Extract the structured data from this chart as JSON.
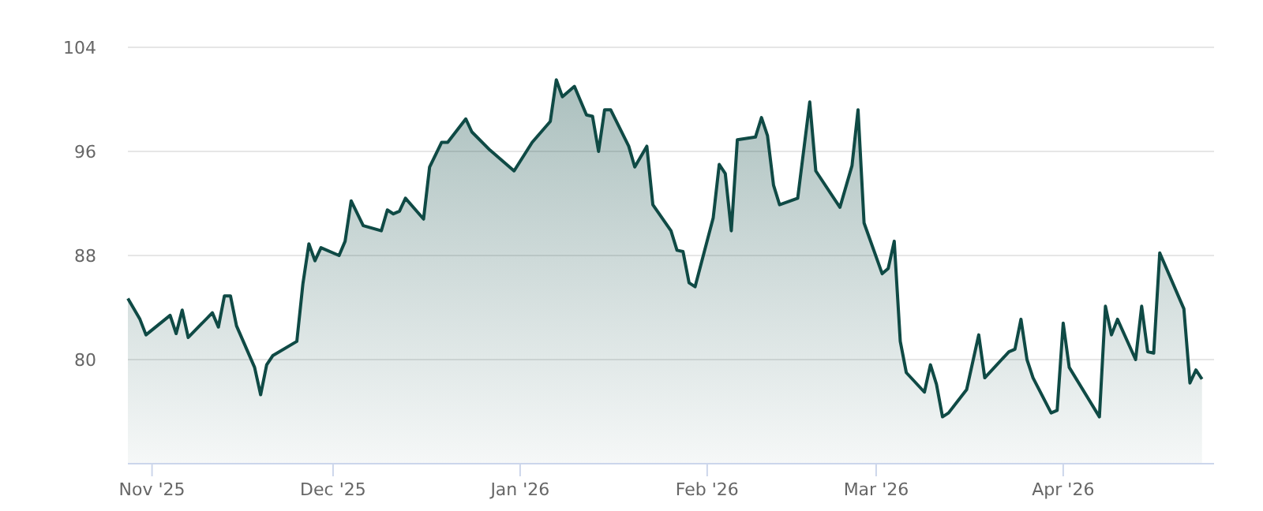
{
  "chart_data": {
    "type": "area",
    "x": [
      "2025-10-28",
      "2025-10-30",
      "2025-10-31",
      "2025-11-04",
      "2025-11-05",
      "2025-11-06",
      "2025-11-07",
      "2025-11-11",
      "2025-11-12",
      "2025-11-13",
      "2025-11-14",
      "2025-11-15",
      "2025-11-18",
      "2025-11-19",
      "2025-11-20",
      "2025-11-21",
      "2025-11-25",
      "2025-11-26",
      "2025-11-27",
      "2025-11-28",
      "2025-11-29",
      "2025-12-02",
      "2025-12-03",
      "2025-12-04",
      "2025-12-06",
      "2025-12-09",
      "2025-12-10",
      "2025-12-11",
      "2025-12-12",
      "2025-12-13",
      "2025-12-16",
      "2025-12-17",
      "2025-12-19",
      "2025-12-20",
      "2025-12-23",
      "2025-12-24",
      "2025-12-27",
      "2025-12-31",
      "2026-01-03",
      "2026-01-06",
      "2026-01-07",
      "2026-01-08",
      "2026-01-10",
      "2026-01-12",
      "2026-01-13",
      "2026-01-14",
      "2026-01-15",
      "2026-01-16",
      "2026-01-19",
      "2026-01-20",
      "2026-01-22",
      "2026-01-23",
      "2026-01-26",
      "2026-01-27",
      "2026-01-28",
      "2026-01-29",
      "2026-01-30",
      "2026-02-02",
      "2026-02-03",
      "2026-02-04",
      "2026-02-05",
      "2026-02-06",
      "2026-02-09",
      "2026-02-10",
      "2026-02-11",
      "2026-02-12",
      "2026-02-13",
      "2026-02-16",
      "2026-02-18",
      "2026-02-19",
      "2026-02-23",
      "2026-02-25",
      "2026-02-26",
      "2026-02-27",
      "2026-03-02",
      "2026-03-03",
      "2026-03-04",
      "2026-03-05",
      "2026-03-06",
      "2026-03-09",
      "2026-03-10",
      "2026-03-11",
      "2026-03-12",
      "2026-03-13",
      "2026-03-16",
      "2026-03-18",
      "2026-03-19",
      "2026-03-23",
      "2026-03-24",
      "2026-03-25",
      "2026-03-26",
      "2026-03-27",
      "2026-03-30",
      "2026-03-31",
      "2026-04-01",
      "2026-04-02",
      "2026-04-07",
      "2026-04-08",
      "2026-04-09",
      "2026-04-10",
      "2026-04-13",
      "2026-04-14",
      "2026-04-15",
      "2026-04-16",
      "2026-04-17",
      "2026-04-21",
      "2026-04-22",
      "2026-04-23",
      "2026-04-24"
    ],
    "series": [
      {
        "color": "#0f4a45",
        "values": [
          84.7,
          83.1,
          81.9,
          83.4,
          82.0,
          83.8,
          81.7,
          83.6,
          82.5,
          84.9,
          84.9,
          82.6,
          79.4,
          77.3,
          79.6,
          80.3,
          81.4,
          85.8,
          88.9,
          87.6,
          88.6,
          88.0,
          89.1,
          92.2,
          90.3,
          89.9,
          91.5,
          91.2,
          91.4,
          92.4,
          90.8,
          94.8,
          96.7,
          96.7,
          98.5,
          97.5,
          96.1,
          94.5,
          96.7,
          98.3,
          101.5,
          100.2,
          101.0,
          98.8,
          98.7,
          96.0,
          99.2,
          99.2,
          96.4,
          94.8,
          96.4,
          91.9,
          89.9,
          88.4,
          88.3,
          85.9,
          85.6,
          90.9,
          95.0,
          94.3,
          89.9,
          96.9,
          97.1,
          98.6,
          97.2,
          93.4,
          91.9,
          92.4,
          99.8,
          94.5,
          91.7,
          94.9,
          99.2,
          90.5,
          86.6,
          87.0,
          89.1,
          81.4,
          79.0,
          77.5,
          79.6,
          78.1,
          75.6,
          75.9,
          77.7,
          81.9,
          78.6,
          80.6,
          80.8,
          83.1,
          80.0,
          78.6,
          75.9,
          76.1,
          82.8,
          79.4,
          75.6,
          84.1,
          81.9,
          83.1,
          80.0,
          84.1,
          80.6,
          80.5,
          88.2,
          83.9,
          78.2,
          79.2,
          78.5
        ]
      }
    ],
    "xlim": [
      "2025-10-28",
      "2026-04-26"
    ],
    "xticks": [
      {
        "value": "2025-11-01",
        "label": "Nov '25"
      },
      {
        "value": "2025-12-01",
        "label": "Dec '25"
      },
      {
        "value": "2026-01-01",
        "label": "Jan '26"
      },
      {
        "value": "2026-02-01",
        "label": "Feb '26"
      },
      {
        "value": "2026-03-01",
        "label": "Mar '26"
      },
      {
        "value": "2026-04-01",
        "label": "Apr '26"
      }
    ],
    "ylim": [
      72,
      104
    ],
    "yticks": [
      80,
      88,
      96,
      104
    ],
    "grid": "y",
    "marker": "none",
    "line_style": "solid"
  }
}
